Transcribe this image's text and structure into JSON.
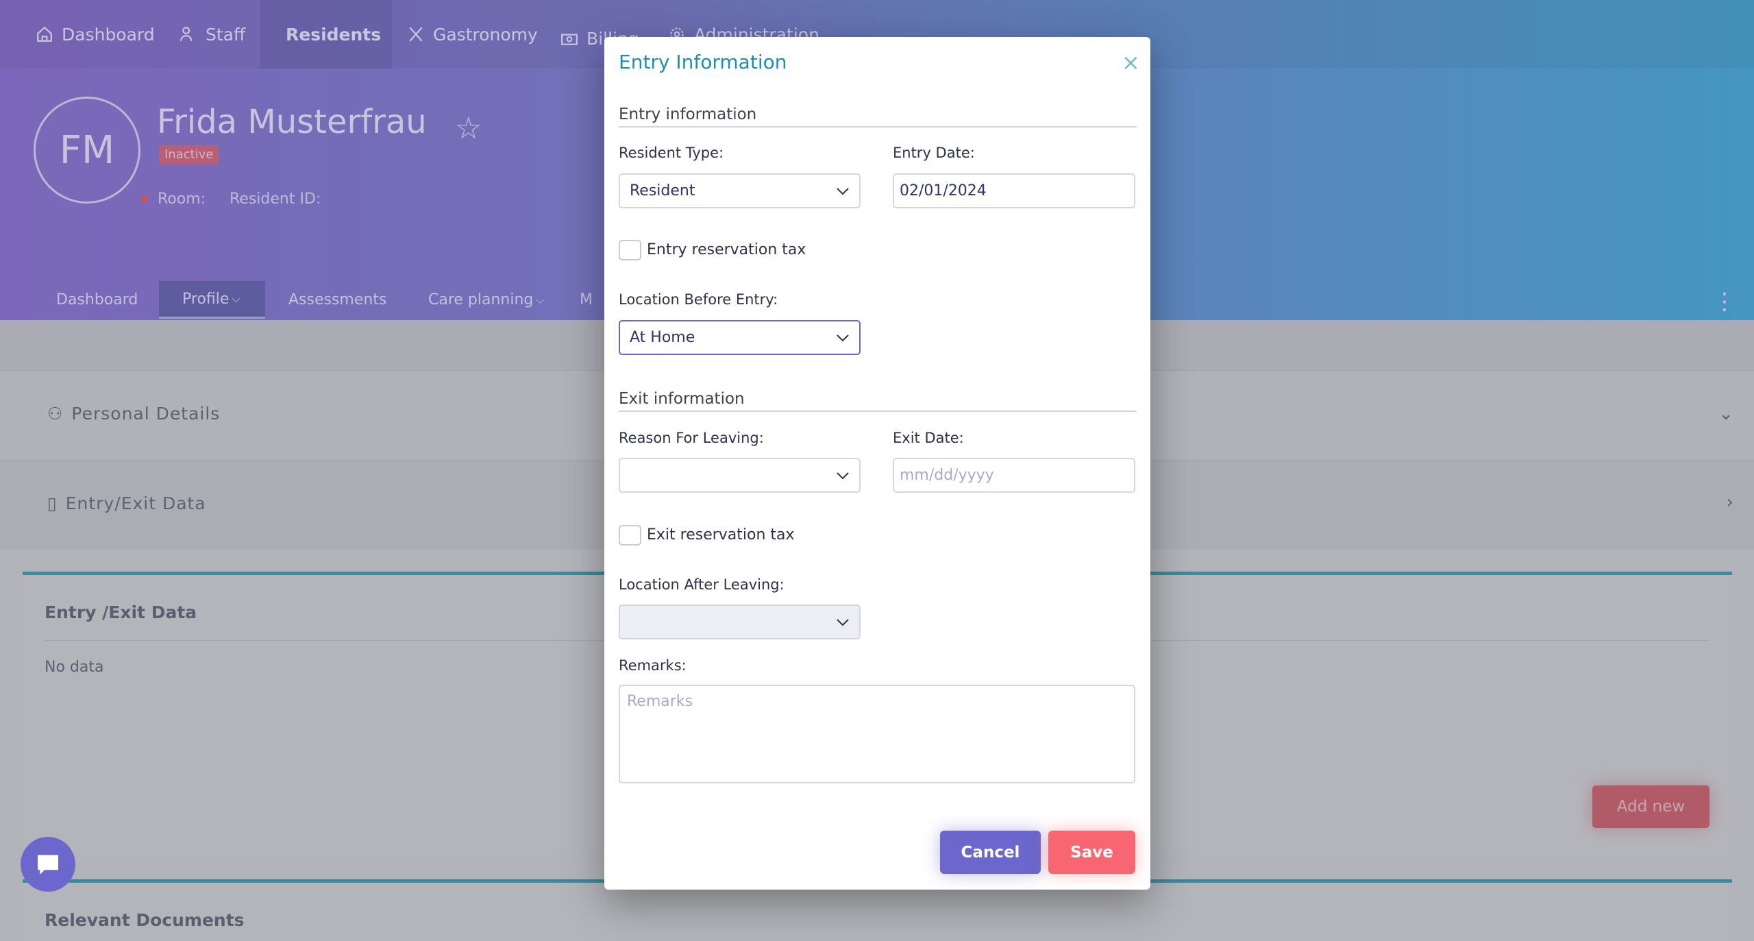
{
  "topnav": {
    "items": [
      {
        "label": "Dashboard",
        "icon": "home-icon"
      },
      {
        "label": "Staff",
        "icon": "users-icon"
      },
      {
        "label": "Residents",
        "icon": "heart-pulse-icon",
        "active": true
      },
      {
        "label": "Gastronomy",
        "icon": "cutlery-icon"
      },
      {
        "label": "Billing",
        "icon": "money-icon"
      },
      {
        "label": "Administration",
        "icon": "gear-icon"
      }
    ]
  },
  "profile": {
    "initials": "FM",
    "name": "Frida Musterfrau",
    "status": "Inactive",
    "room_label": "Room:",
    "resident_id_label": "Resident ID:"
  },
  "subtabs": [
    {
      "label": "Dashboard"
    },
    {
      "label": "Profile"
    },
    {
      "label": "Assessments"
    },
    {
      "label": "Care planning"
    },
    {
      "label": "M"
    }
  ],
  "sections": {
    "personal": "Personal Details",
    "entry_exit": "Entry/Exit Data"
  },
  "card": {
    "title": "Entry /Exit Data",
    "empty": "No data",
    "add_new": "Add new"
  },
  "card2": {
    "title": "Relevant Documents"
  },
  "modal": {
    "title": "Entry Information",
    "close": "×",
    "entry_section": "Entry information",
    "resident_type_label": "Resident Type:",
    "resident_type_value": "Resident",
    "entry_date_label": "Entry Date:",
    "entry_date_value": "02/01/2024",
    "entry_tax_label": "Entry reservation tax",
    "entry_tax_checked": false,
    "location_before_label": "Location Before Entry:",
    "location_before_value": "At Home",
    "exit_section": "Exit information",
    "reason_label": "Reason For Leaving:",
    "reason_value": "",
    "exit_date_label": "Exit Date:",
    "exit_date_placeholder": "mm/dd/yyyy",
    "exit_tax_label": "Exit reservation tax",
    "exit_tax_checked": false,
    "location_after_label": "Location After Leaving:",
    "location_after_value": "",
    "remarks_label": "Remarks:",
    "remarks_placeholder": "Remarks",
    "cancel": "Cancel",
    "save": "Save"
  },
  "colors": {
    "accent": "#6b67cc",
    "danger": "#f86671",
    "title": "#1f8fb0",
    "card_border": "#3c8a9a"
  }
}
